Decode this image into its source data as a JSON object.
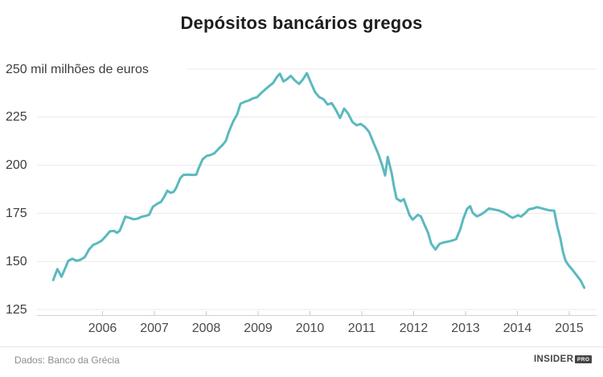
{
  "title": "Depósitos bancários gregos",
  "y_axis": {
    "unit_row_label": "250 mil milhões de euros",
    "tick_values": [
      250,
      225,
      200,
      175,
      150,
      125
    ]
  },
  "x_axis": {
    "tick_years": [
      2006,
      2007,
      2008,
      2009,
      2010,
      2011,
      2012,
      2013,
      2014,
      2015
    ]
  },
  "footer": {
    "source": "Dados: Banco da Grécia",
    "logo_text": "INSIDER",
    "logo_badge": "PRO"
  },
  "colors": {
    "line": "#5bb9be",
    "grid": "#e9e9e9",
    "axis": "#d2d2d2",
    "tick": "#c9c9c9"
  },
  "chart_data": {
    "type": "line",
    "title": "Depósitos bancários gregos",
    "ylabel": "mil milhões de euros",
    "ylim": [
      125,
      250
    ],
    "xlim": [
      2005,
      2015.5
    ],
    "grid": true,
    "legend": false,
    "y_gridlines": [
      250,
      225,
      200,
      175,
      150,
      125
    ],
    "x_ticks": [
      2006,
      2007,
      2008,
      2009,
      2010,
      2011,
      2012,
      2013,
      2014,
      2015
    ],
    "series": [
      {
        "name": "Depósitos bancários (mil milhões de euros)",
        "points": [
          [
            2005.05,
            140.3
          ],
          [
            2005.13,
            146.0
          ],
          [
            2005.21,
            142.0
          ],
          [
            2005.34,
            150.3
          ],
          [
            2005.42,
            151.4
          ],
          [
            2005.5,
            150.3
          ],
          [
            2005.58,
            150.9
          ],
          [
            2005.66,
            152.3
          ],
          [
            2005.74,
            156.2
          ],
          [
            2005.82,
            158.6
          ],
          [
            2005.9,
            159.5
          ],
          [
            2005.98,
            160.7
          ],
          [
            2006.06,
            163.0
          ],
          [
            2006.14,
            165.6
          ],
          [
            2006.22,
            165.9
          ],
          [
            2006.28,
            164.9
          ],
          [
            2006.33,
            165.9
          ],
          [
            2006.38,
            169.1
          ],
          [
            2006.44,
            173.3
          ],
          [
            2006.52,
            172.6
          ],
          [
            2006.6,
            171.9
          ],
          [
            2006.68,
            172.3
          ],
          [
            2006.76,
            173.3
          ],
          [
            2006.84,
            173.7
          ],
          [
            2006.9,
            174.3
          ],
          [
            2006.97,
            178.4
          ],
          [
            2007.05,
            179.9
          ],
          [
            2007.13,
            181.0
          ],
          [
            2007.19,
            183.6
          ],
          [
            2007.25,
            186.8
          ],
          [
            2007.31,
            185.7
          ],
          [
            2007.37,
            186.1
          ],
          [
            2007.42,
            188.2
          ],
          [
            2007.5,
            193.3
          ],
          [
            2007.56,
            195.0
          ],
          [
            2007.65,
            195.1
          ],
          [
            2007.74,
            195.0
          ],
          [
            2007.81,
            195.1
          ],
          [
            2007.85,
            198.2
          ],
          [
            2007.93,
            203.1
          ],
          [
            2008.01,
            204.9
          ],
          [
            2008.09,
            205.4
          ],
          [
            2008.16,
            206.3
          ],
          [
            2008.24,
            208.6
          ],
          [
            2008.32,
            210.7
          ],
          [
            2008.38,
            212.8
          ],
          [
            2008.44,
            217.7
          ],
          [
            2008.52,
            222.8
          ],
          [
            2008.6,
            226.7
          ],
          [
            2008.66,
            232.0
          ],
          [
            2008.74,
            233.0
          ],
          [
            2008.82,
            233.7
          ],
          [
            2008.9,
            234.8
          ],
          [
            2008.98,
            235.4
          ],
          [
            2009.06,
            237.6
          ],
          [
            2009.14,
            239.5
          ],
          [
            2009.22,
            241.3
          ],
          [
            2009.29,
            242.8
          ],
          [
            2009.37,
            246.2
          ],
          [
            2009.42,
            247.6
          ],
          [
            2009.49,
            243.6
          ],
          [
            2009.56,
            244.8
          ],
          [
            2009.63,
            246.5
          ],
          [
            2009.71,
            244.1
          ],
          [
            2009.79,
            242.3
          ],
          [
            2009.86,
            244.5
          ],
          [
            2009.94,
            247.9
          ],
          [
            2010.02,
            242.8
          ],
          [
            2010.1,
            238.0
          ],
          [
            2010.18,
            235.4
          ],
          [
            2010.26,
            234.4
          ],
          [
            2010.34,
            231.6
          ],
          [
            2010.42,
            232.3
          ],
          [
            2010.5,
            228.8
          ],
          [
            2010.58,
            224.6
          ],
          [
            2010.66,
            229.5
          ],
          [
            2010.74,
            226.7
          ],
          [
            2010.82,
            222.5
          ],
          [
            2010.9,
            220.8
          ],
          [
            2010.98,
            221.5
          ],
          [
            2011.06,
            219.9
          ],
          [
            2011.14,
            217.4
          ],
          [
            2011.23,
            211.4
          ],
          [
            2011.31,
            206.5
          ],
          [
            2011.39,
            200.3
          ],
          [
            2011.45,
            194.7
          ],
          [
            2011.5,
            204.4
          ],
          [
            2011.58,
            195.3
          ],
          [
            2011.62,
            189.0
          ],
          [
            2011.67,
            182.7
          ],
          [
            2011.75,
            181.3
          ],
          [
            2011.81,
            182.4
          ],
          [
            2011.92,
            174.1
          ],
          [
            2011.98,
            171.7
          ],
          [
            2012.08,
            174.2
          ],
          [
            2012.14,
            173.4
          ],
          [
            2012.2,
            169.6
          ],
          [
            2012.28,
            164.7
          ],
          [
            2012.34,
            159.1
          ],
          [
            2012.42,
            156.2
          ],
          [
            2012.5,
            159.1
          ],
          [
            2012.58,
            159.9
          ],
          [
            2012.66,
            160.3
          ],
          [
            2012.74,
            160.8
          ],
          [
            2012.82,
            161.6
          ],
          [
            2012.9,
            166.8
          ],
          [
            2012.96,
            172.4
          ],
          [
            2013.03,
            177.3
          ],
          [
            2013.09,
            178.7
          ],
          [
            2013.14,
            175.2
          ],
          [
            2013.22,
            173.4
          ],
          [
            2013.29,
            174.3
          ],
          [
            2013.37,
            175.7
          ],
          [
            2013.45,
            177.5
          ],
          [
            2013.53,
            177.1
          ],
          [
            2013.64,
            176.5
          ],
          [
            2013.74,
            175.4
          ],
          [
            2013.84,
            173.7
          ],
          [
            2013.91,
            172.6
          ],
          [
            2014.01,
            174.0
          ],
          [
            2014.07,
            173.3
          ],
          [
            2014.15,
            175.1
          ],
          [
            2014.22,
            177.1
          ],
          [
            2014.3,
            177.5
          ],
          [
            2014.38,
            178.2
          ],
          [
            2014.52,
            177.2
          ],
          [
            2014.61,
            176.6
          ],
          [
            2014.71,
            176.4
          ],
          [
            2014.77,
            168.2
          ],
          [
            2014.83,
            161.9
          ],
          [
            2014.88,
            154.8
          ],
          [
            2014.93,
            150.3
          ],
          [
            2014.98,
            148.3
          ],
          [
            2015.06,
            145.7
          ],
          [
            2015.14,
            142.9
          ],
          [
            2015.22,
            140.1
          ],
          [
            2015.29,
            136.3
          ]
        ]
      }
    ]
  }
}
